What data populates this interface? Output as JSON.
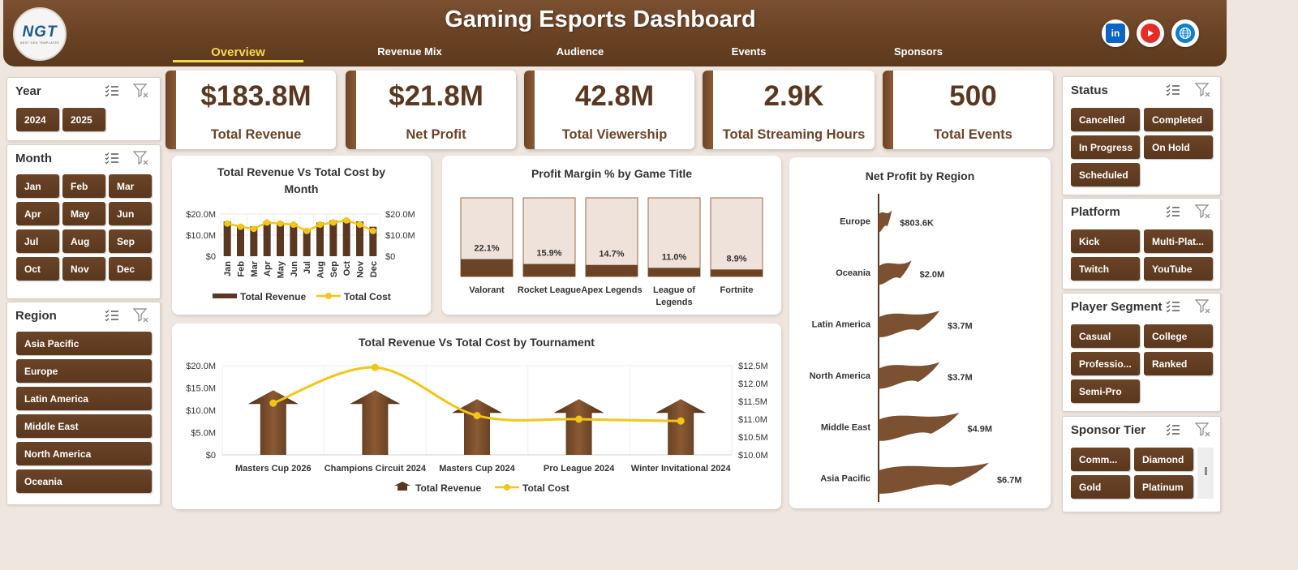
{
  "header": {
    "logo": "NGT",
    "logo_sub": "NEXT GEN TEMPLATES",
    "title": "Gaming Esports Dashboard",
    "tabs": [
      "Overview",
      "Revenue Mix",
      "Audience",
      "Events",
      "Sponsors"
    ],
    "active_tab": "Overview",
    "social": [
      "linkedin-icon",
      "youtube-icon",
      "website-icon"
    ]
  },
  "colors": {
    "brown": "#6b4428",
    "dark_brown": "#5a3720",
    "gold": "#f4c518",
    "bg": "#efe6df",
    "active_tab": "#f4d94b"
  },
  "kpis": [
    {
      "value": "$183.8M",
      "label": "Total Revenue"
    },
    {
      "value": "$21.8M",
      "label": "Net Profit"
    },
    {
      "value": "42.8M",
      "label": "Total Viewership"
    },
    {
      "value": "2.9K",
      "label": "Total Streaming Hours"
    },
    {
      "value": "500",
      "label": "Total Events"
    }
  ],
  "slicers": {
    "year": {
      "title": "Year",
      "items": [
        "2024",
        "2025"
      ]
    },
    "month": {
      "title": "Month",
      "items": [
        "Jan",
        "Feb",
        "Mar",
        "Apr",
        "May",
        "Jun",
        "Jul",
        "Aug",
        "Sep",
        "Oct",
        "Nov",
        "Dec"
      ]
    },
    "region": {
      "title": "Region",
      "items": [
        "Asia Pacific",
        "Europe",
        "Latin America",
        "Middle East",
        "North America",
        "Oceania"
      ]
    },
    "status": {
      "title": "Status",
      "items": [
        "Cancelled",
        "Completed",
        "In Progress",
        "On Hold",
        "Scheduled"
      ]
    },
    "platform": {
      "title": "Platform",
      "items": [
        "Kick",
        "Multi-Plat...",
        "Twitch",
        "YouTube"
      ]
    },
    "segment": {
      "title": "Player Segment",
      "items": [
        "Casual",
        "College",
        "Professio...",
        "Ranked",
        "Semi-Pro"
      ]
    },
    "tier": {
      "title": "Sponsor Tier",
      "items": [
        "Comm...",
        "Diamond",
        "Gold",
        "Platinum"
      ]
    }
  },
  "chart_data": [
    {
      "id": "monthly",
      "type": "bar",
      "title": "Total Revenue Vs Total Cost by Month",
      "categories": [
        "Jan",
        "Feb",
        "Mar",
        "Apr",
        "May",
        "Jun",
        "Jul",
        "Aug",
        "Sep",
        "Oct",
        "Nov",
        "Dec"
      ],
      "series": [
        {
          "name": "Total Revenue",
          "type": "bar",
          "axis": "left",
          "values": [
            16.5,
            14.5,
            14.2,
            16.5,
            16.0,
            15.5,
            13.0,
            16.0,
            17.0,
            17.5,
            16.5,
            14.0
          ]
        },
        {
          "name": "Total Cost",
          "type": "line",
          "axis": "right",
          "values": [
            15.5,
            14.0,
            13.0,
            16.0,
            15.5,
            15.0,
            12.0,
            15.0,
            16.0,
            17.0,
            15.0,
            12.0
          ]
        }
      ],
      "y_left": {
        "ticks": [
          "$20.0M",
          "$10.0M",
          "$0"
        ],
        "range": [
          0,
          20
        ]
      },
      "y_right": {
        "ticks": [
          "$20.0M",
          "$10.0M",
          "$0"
        ],
        "range": [
          0,
          20
        ]
      },
      "legend": [
        "Total Revenue",
        "Total Cost"
      ],
      "legend_position": "bottom"
    },
    {
      "id": "margin",
      "type": "bar",
      "title": "Profit Margin % by Game Title",
      "categories": [
        "Valorant",
        "Rocket League",
        "Apex Legends",
        "League of Legends",
        "Fortnite"
      ],
      "values": [
        22.1,
        15.9,
        14.7,
        11.0,
        8.9
      ],
      "labels": [
        "22.1%",
        "15.9%",
        "14.7%",
        "11.0%",
        "8.9%"
      ],
      "ylim": [
        0,
        100
      ]
    },
    {
      "id": "region",
      "type": "bar",
      "title": "Net Profit by Region",
      "categories": [
        "Europe",
        "Oceania",
        "Latin America",
        "North America",
        "Middle East",
        "Asia Pacific"
      ],
      "values": [
        0.8036,
        2.0,
        3.7,
        3.7,
        4.9,
        6.7
      ],
      "labels": [
        "$803.6K",
        "$2.0M",
        "$3.7M",
        "$3.7M",
        "$4.9M",
        "$6.7M"
      ],
      "orientation": "horizontal"
    },
    {
      "id": "tournament",
      "type": "bar",
      "title": "Total Revenue Vs Total Cost by Tournament",
      "categories": [
        "Masters Cup 2026",
        "Champions Circuit 2024",
        "Masters Cup 2024",
        "Pro League 2024",
        "Winter Invitational 2024"
      ],
      "series": [
        {
          "name": "Total Revenue",
          "type": "bar",
          "axis": "left",
          "values": [
            14.5,
            14.5,
            12.5,
            12.5,
            12.5
          ]
        },
        {
          "name": "Total Cost",
          "type": "line",
          "axis": "right",
          "values": [
            11.45,
            12.45,
            11.1,
            11.0,
            10.95
          ]
        }
      ],
      "y_left": {
        "ticks": [
          "$20.0M",
          "$15.0M",
          "$10.0M",
          "$5.0M",
          "$0"
        ],
        "range": [
          0,
          20
        ]
      },
      "y_right": {
        "ticks": [
          "$12.5M",
          "$12.0M",
          "$11.5M",
          "$11.0M",
          "$10.5M",
          "$10.0M"
        ],
        "range": [
          10,
          12.5
        ]
      },
      "legend": [
        "Total Revenue",
        "Total Cost"
      ],
      "legend_position": "bottom"
    }
  ]
}
